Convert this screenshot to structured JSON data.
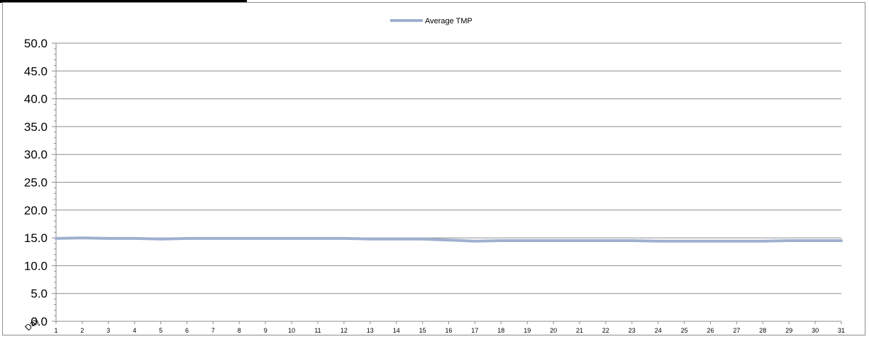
{
  "chart_data": {
    "type": "line",
    "title": "",
    "xlabel": "Day",
    "ylabel": "",
    "legend_position": "top-center",
    "grid": true,
    "x": [
      1,
      2,
      3,
      4,
      5,
      6,
      7,
      8,
      9,
      10,
      11,
      12,
      13,
      14,
      15,
      16,
      17,
      18,
      19,
      20,
      21,
      22,
      23,
      24,
      25,
      26,
      27,
      28,
      29,
      30,
      31
    ],
    "ylim": [
      0,
      50
    ],
    "y_ticks": [
      "0.0",
      "5.0",
      "10.0",
      "15.0",
      "20.0",
      "25.0",
      "30.0",
      "35.0",
      "40.0",
      "45.0",
      "50.0"
    ],
    "series": [
      {
        "name": "Average TMP",
        "color": "#9fb0cf",
        "values": [
          14.9,
          15.0,
          14.9,
          14.9,
          14.8,
          14.9,
          14.9,
          14.9,
          14.9,
          14.9,
          14.9,
          14.9,
          14.8,
          14.8,
          14.8,
          14.6,
          14.4,
          14.5,
          14.5,
          14.5,
          14.5,
          14.5,
          14.5,
          14.4,
          14.4,
          14.4,
          14.4,
          14.4,
          14.5,
          14.5,
          14.5
        ]
      }
    ]
  }
}
